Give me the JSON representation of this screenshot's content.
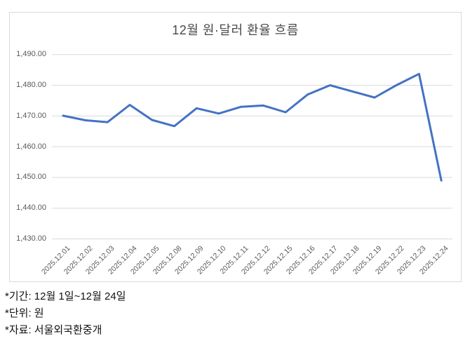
{
  "chart_data": {
    "type": "line",
    "title": "12월 원·달러 환율 흐름",
    "categories": [
      "2025.12.01",
      "2025.12.02",
      "2025.12.03",
      "2025.12.04",
      "2025.12.05",
      "2025.12.08",
      "2025.12.09",
      "2025.12.10",
      "2025.12.11",
      "2025.12.12",
      "2025.12.15",
      "2025.12.16",
      "2025.12.17",
      "2025.12.18",
      "2025.12.19",
      "2025.12.22",
      "2025.12.23",
      "2025.12.24"
    ],
    "values": [
      1470.1,
      1468.6,
      1468.0,
      1473.6,
      1468.7,
      1466.7,
      1472.5,
      1470.8,
      1473.0,
      1473.4,
      1471.2,
      1477.0,
      1480.0,
      1478.0,
      1476.0,
      1480.1,
      1483.7,
      1449.0
    ],
    "ylim": [
      1430,
      1490
    ],
    "y_ticks": [
      {
        "value": 1490,
        "label": "1,490.00"
      },
      {
        "value": 1480,
        "label": "1,480.00"
      },
      {
        "value": 1470,
        "label": "1,470.00"
      },
      {
        "value": 1460,
        "label": "1,460.00"
      },
      {
        "value": 1450,
        "label": "1,450.00"
      },
      {
        "value": 1440,
        "label": "1,440.00"
      },
      {
        "value": 1430,
        "label": "1,430.00"
      }
    ],
    "xlabel": "",
    "ylabel": "",
    "legend": "none",
    "grid": "horizontal",
    "line_color": "#4472C4",
    "grid_color": "#D9D9D9",
    "axis_text_color": "#595959",
    "title_color": "#4a4a4a"
  },
  "footnotes": [
    "*기간: 12월 1일~12월 24일",
    "*단위: 원",
    "*자료: 서울외국환중개"
  ]
}
